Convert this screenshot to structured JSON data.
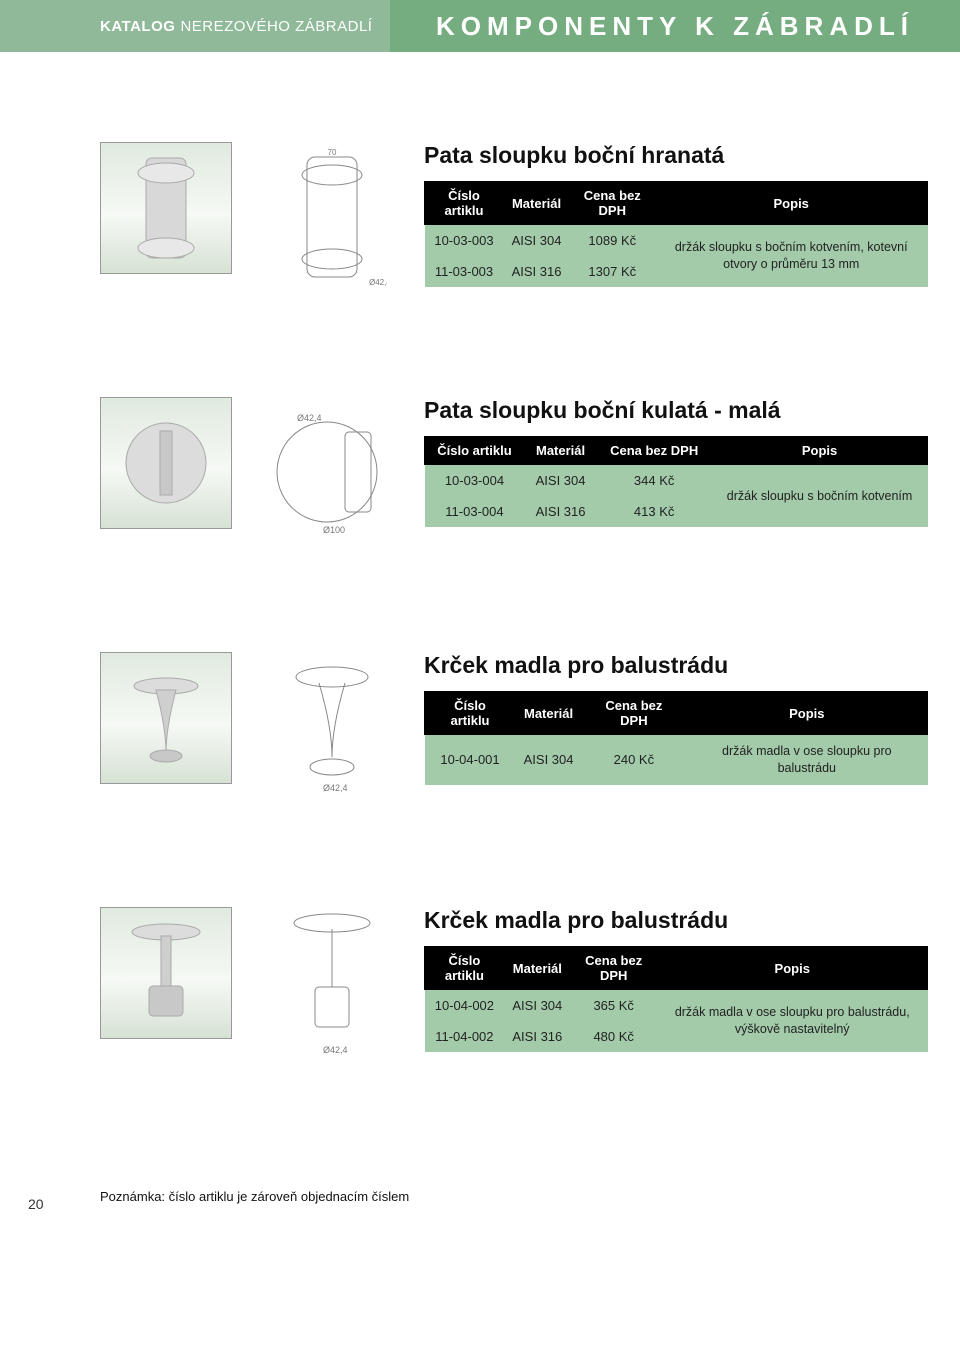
{
  "header": {
    "left_bold": "KATALOG",
    "left_light": "NEREZOVÉHO ZÁBRADLÍ",
    "right": "KOMPONENTY K ZÁBRADLÍ"
  },
  "columns": [
    "Číslo artiklu",
    "Materiál",
    "Cena bez DPH",
    "Popis"
  ],
  "products": [
    {
      "title": "Pata sloupku boční hranatá",
      "rows": [
        {
          "art": "10-03-003",
          "mat": "AISI 304",
          "price": "1089 Kč"
        },
        {
          "art": "11-03-003",
          "mat": "AISI 316",
          "price": "1307 Kč"
        }
      ],
      "desc": "držák sloupku s bočním kotvením, kotevní otvory o průměru 13 mm",
      "desc_rowspan": 2
    },
    {
      "title": "Pata sloupku boční kulatá - malá",
      "rows": [
        {
          "art": "10-03-004",
          "mat": "AISI 304",
          "price": "344 Kč"
        },
        {
          "art": "11-03-004",
          "mat": "AISI 316",
          "price": "413 Kč"
        }
      ],
      "desc": "držák sloupku s bočním kotvením",
      "desc_rowspan": 2
    },
    {
      "title": "Krček madla pro balustrádu",
      "rows": [
        {
          "art": "10-04-001",
          "mat": "AISI 304",
          "price": "240 Kč"
        }
      ],
      "desc": "držák madla v ose sloupku pro balustrádu",
      "desc_rowspan": 1
    },
    {
      "title": "Krček madla pro balustrádu",
      "rows": [
        {
          "art": "10-04-002",
          "mat": "AISI 304",
          "price": "365 Kč"
        },
        {
          "art": "11-04-002",
          "mat": "AISI 316",
          "price": "480 Kč"
        }
      ],
      "desc": "držák madla v ose sloupku pro balustrádu, výškově nastavitelný",
      "desc_rowspan": 2
    }
  ],
  "footer": {
    "page": "20",
    "note": "Poznámka: číslo artiklu je zároveň objednacím číslem"
  },
  "colors": {
    "header_left_bg": "#8fb998",
    "header_right_bg": "#76ad80",
    "table_header_bg": "#000000",
    "table_cell_bg": "#a3cbaa"
  }
}
